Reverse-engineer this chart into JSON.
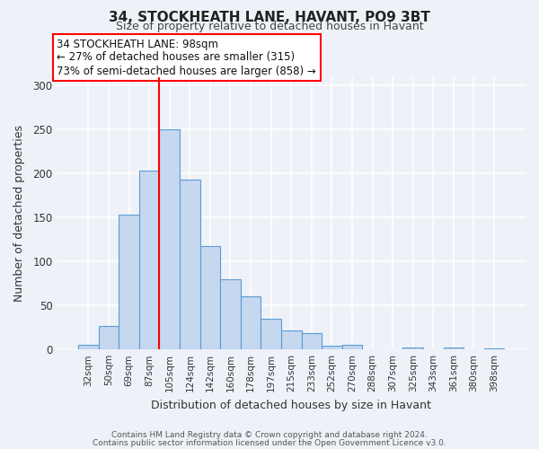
{
  "title_line1": "34, STOCKHEATH LANE, HAVANT, PO9 3BT",
  "title_line2": "Size of property relative to detached houses in Havant",
  "xlabel": "Distribution of detached houses by size in Havant",
  "ylabel": "Number of detached properties",
  "bar_labels": [
    "32sqm",
    "50sqm",
    "69sqm",
    "87sqm",
    "105sqm",
    "124sqm",
    "142sqm",
    "160sqm",
    "178sqm",
    "197sqm",
    "215sqm",
    "233sqm",
    "252sqm",
    "270sqm",
    "288sqm",
    "307sqm",
    "325sqm",
    "343sqm",
    "361sqm",
    "380sqm",
    "398sqm"
  ],
  "bar_values": [
    5,
    27,
    153,
    203,
    250,
    193,
    118,
    80,
    60,
    35,
    22,
    19,
    4,
    5,
    0,
    0,
    2,
    0,
    2,
    0,
    1
  ],
  "bar_color": "#c5d8f0",
  "bar_edge_color": "#5b9bd5",
  "annotation_title": "34 STOCKHEATH LANE: 98sqm",
  "annotation_line2": "← 27% of detached houses are smaller (315)",
  "annotation_line3": "73% of semi-detached houses are larger (858) →",
  "annotation_box_edge_color": "red",
  "red_line_x": 3.5,
  "ylim": [
    0,
    310
  ],
  "yticks": [
    0,
    50,
    100,
    150,
    200,
    250,
    300
  ],
  "footer_line1": "Contains HM Land Registry data © Crown copyright and database right 2024.",
  "footer_line2": "Contains public sector information licensed under the Open Government Licence v3.0.",
  "bg_color": "#eef2f8",
  "plot_bg_color": "#eef2f8",
  "grid_color": "white"
}
